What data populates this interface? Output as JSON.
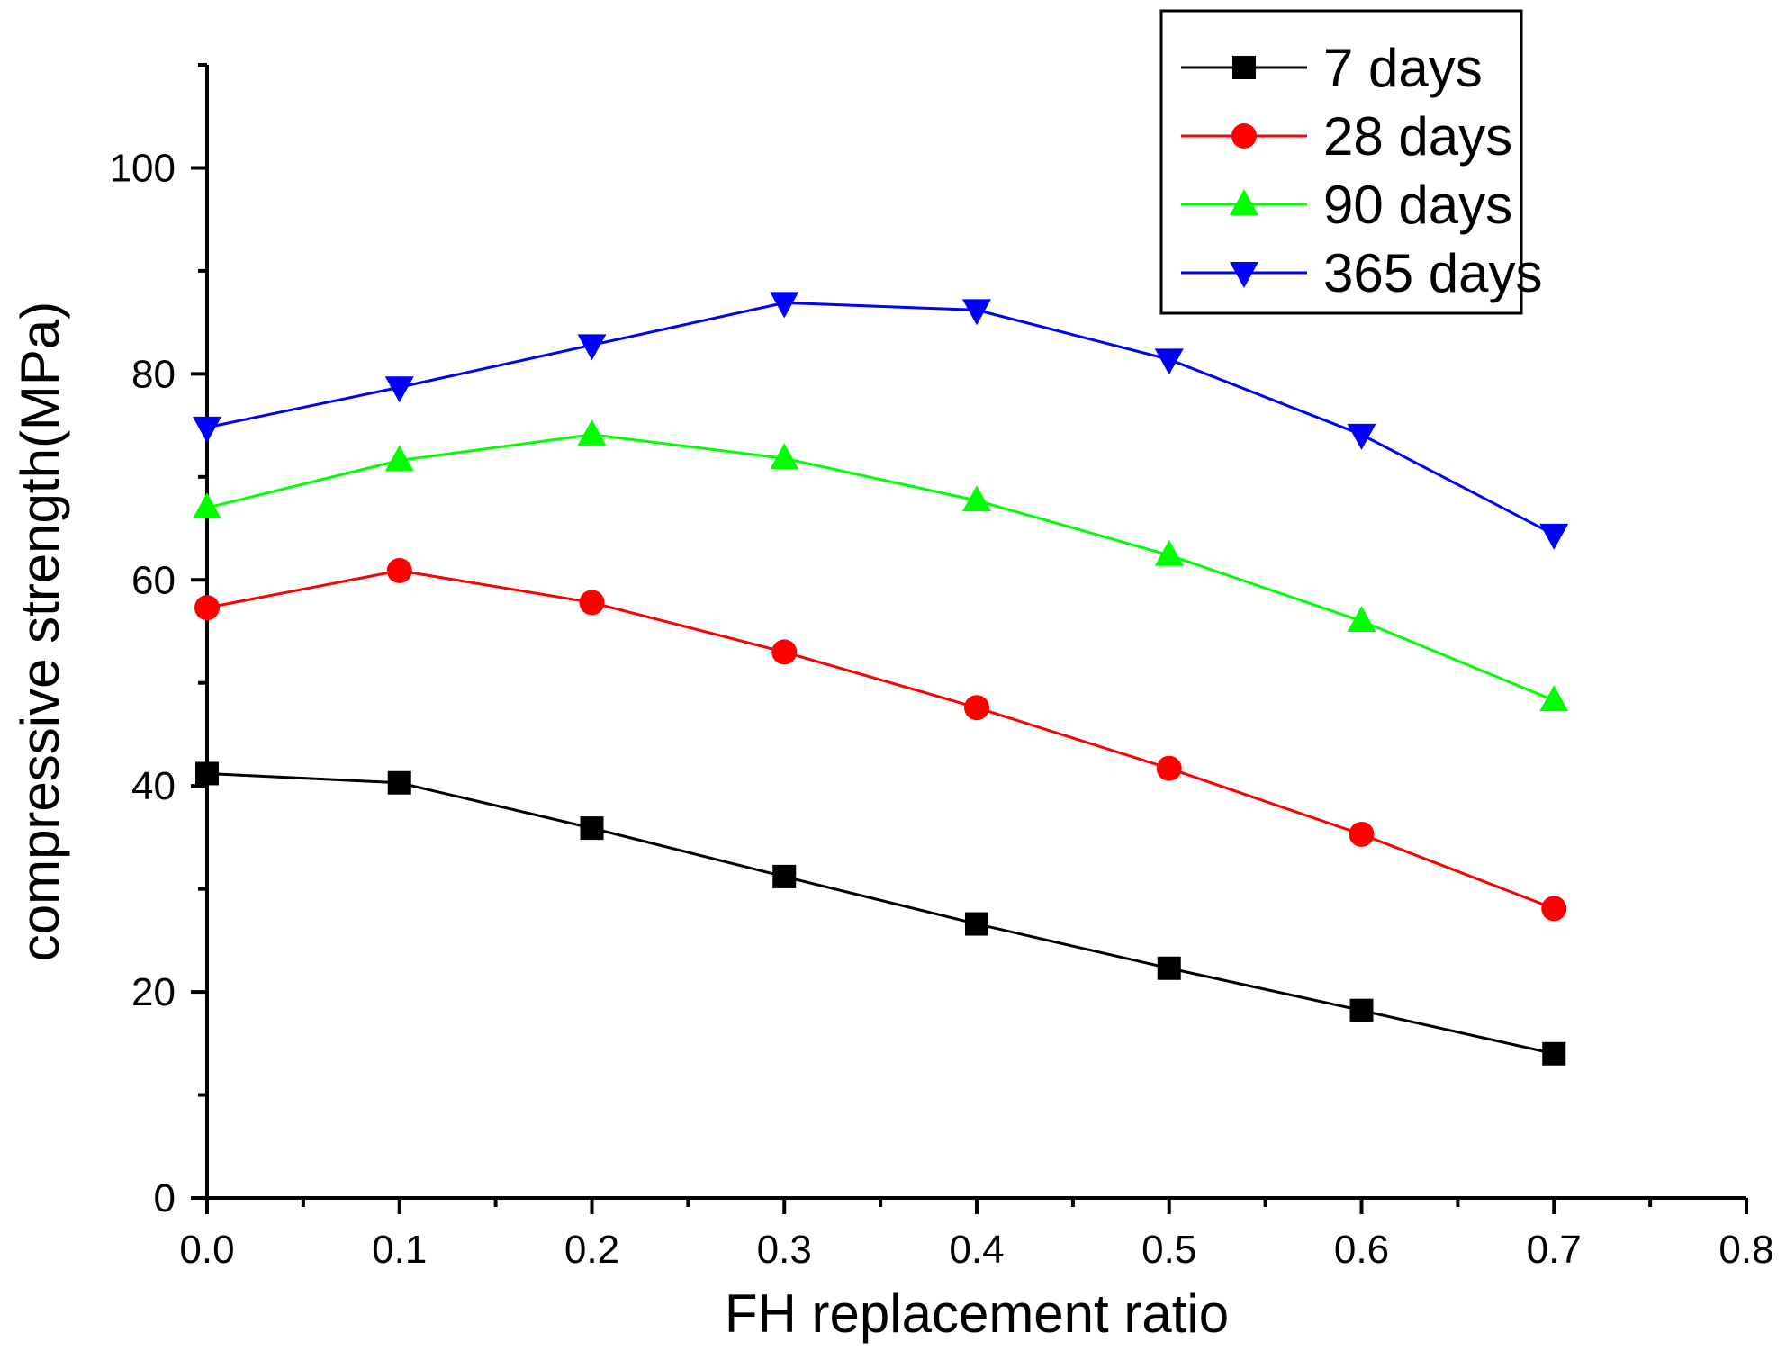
{
  "chart_data": {
    "type": "line",
    "xlabel": "FH replacement ratio",
    "ylabel": "compressive strength(MPa)",
    "xlim": [
      0.0,
      0.8
    ],
    "ylim": [
      0,
      110
    ],
    "xticks": [
      "0.0",
      "0.1",
      "0.2",
      "0.3",
      "0.4",
      "0.5",
      "0.6",
      "0.7",
      "0.8"
    ],
    "yticks": [
      "0",
      "20",
      "40",
      "60",
      "80",
      "100"
    ],
    "grid": false,
    "legend_position": "top-right",
    "x": [
      0.0,
      0.1,
      0.2,
      0.3,
      0.4,
      0.5,
      0.6,
      0.7
    ],
    "series": [
      {
        "name": "7 days",
        "marker": "square",
        "color": "#000000",
        "values": [
          41.2,
          40.3,
          35.9,
          31.2,
          26.6,
          22.3,
          18.2,
          14.0
        ]
      },
      {
        "name": "28 days",
        "marker": "circle",
        "color": "#ff0000",
        "values": [
          57.3,
          60.9,
          57.8,
          53.0,
          47.6,
          41.7,
          35.3,
          28.1
        ]
      },
      {
        "name": "90 days",
        "marker": "triangle-up",
        "color": "#00ff00",
        "values": [
          67.0,
          71.6,
          74.1,
          71.8,
          67.7,
          62.4,
          56.0,
          48.3
        ]
      },
      {
        "name": "365 days",
        "marker": "triangle-down",
        "color": "#0000ff",
        "values": [
          74.8,
          78.7,
          82.8,
          86.9,
          86.2,
          81.4,
          74.1,
          64.4
        ]
      }
    ]
  }
}
